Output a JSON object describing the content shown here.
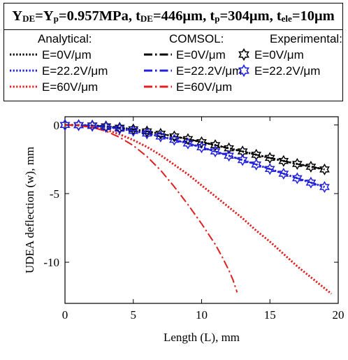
{
  "title": {
    "segments": [
      {
        "text": "Y",
        "sub": "DE"
      },
      {
        "text": "=Y",
        "sub": "p"
      },
      {
        "text": "=0.957MPa, t",
        "sub": "DE"
      },
      {
        "text": "=446μm, t",
        "sub": "p"
      },
      {
        "text": "=304μm, t",
        "sub": "ele"
      },
      {
        "text": "=10μm",
        "sub": ""
      }
    ]
  },
  "legend": {
    "groups": [
      {
        "header": "Analytical:",
        "entries": [
          {
            "label": "E=0V/μm",
            "color": "#000000",
            "style": "dotted"
          },
          {
            "label": "E=22.2V/μm",
            "color": "#1f1fe0",
            "style": "dotted"
          },
          {
            "label": "E=60V/μm",
            "color": "#e01f1f",
            "style": "dotted"
          }
        ]
      },
      {
        "header": "COMSOL:",
        "entries": [
          {
            "label": "E=0V/μm",
            "color": "#000000",
            "style": "dashdot"
          },
          {
            "label": "E=22.2V/μm",
            "color": "#1f1fe0",
            "style": "dashdot"
          },
          {
            "label": "E=60V/μm",
            "color": "#e01f1f",
            "style": "dashdot"
          }
        ]
      },
      {
        "header": "Experimental:",
        "entries": [
          {
            "label": "E=0V/μm",
            "color": "#000000",
            "style": "hexagram"
          },
          {
            "label": "E=22.2V/μm",
            "color": "#1f1fe0",
            "style": "hexagram"
          }
        ]
      }
    ]
  },
  "chart_data": {
    "type": "line",
    "xlabel": "Length (L), mm",
    "ylabel": "UDEA deflection (w), mm",
    "xlim": [
      0,
      20
    ],
    "ylim": [
      -13,
      0.6
    ],
    "xticks": [
      0,
      5,
      10,
      15,
      20
    ],
    "yticks": [
      0,
      -5,
      -10
    ],
    "grid": false,
    "legend_position": "above plot, boxed",
    "series": [
      {
        "name": "Analytical: E=0V/μm",
        "color": "#000000",
        "style": "dotted",
        "x": [
          0,
          1,
          2,
          3,
          4,
          5,
          6,
          7,
          8,
          9,
          10,
          11,
          12,
          13,
          14,
          15,
          16,
          17,
          18,
          19
        ],
        "y": [
          0,
          -0.01,
          -0.04,
          -0.1,
          -0.2,
          -0.32,
          -0.47,
          -0.64,
          -0.83,
          -1.03,
          -1.25,
          -1.47,
          -1.7,
          -1.93,
          -2.17,
          -2.4,
          -2.62,
          -2.84,
          -3.04,
          -3.24
        ]
      },
      {
        "name": "Analytical: E=22.2V/μm",
        "color": "#1f1fe0",
        "style": "dotted",
        "x": [
          0,
          1,
          2,
          3,
          4,
          5,
          6,
          7,
          8,
          9,
          10,
          11,
          12,
          13,
          14,
          15,
          16,
          17,
          18,
          19
        ],
        "y": [
          0,
          -0.02,
          -0.07,
          -0.15,
          -0.27,
          -0.43,
          -0.62,
          -0.84,
          -1.08,
          -1.35,
          -1.63,
          -1.93,
          -2.24,
          -2.56,
          -2.88,
          -3.21,
          -3.55,
          -3.88,
          -4.2,
          -4.52
        ]
      },
      {
        "name": "Analytical: E=60V/μm",
        "color": "#e01f1f",
        "style": "dotted",
        "x": [
          0,
          1,
          2,
          3,
          4,
          5,
          6,
          7,
          8,
          9,
          10,
          11,
          12,
          13,
          14,
          15,
          16,
          17,
          18,
          19.5
        ],
        "y": [
          0,
          -0.03,
          -0.14,
          -0.35,
          -0.68,
          -1.1,
          -1.6,
          -2.2,
          -2.9,
          -3.6,
          -4.4,
          -5.2,
          -6.0,
          -6.8,
          -7.7,
          -8.5,
          -9.4,
          -10.3,
          -11.1,
          -12.3
        ]
      },
      {
        "name": "COMSOL: E=0V/μm",
        "color": "#000000",
        "style": "dashdot",
        "x": [
          0,
          1,
          2,
          3,
          4,
          5,
          6,
          7,
          8,
          9,
          10,
          11,
          12,
          13,
          14,
          15,
          16,
          17,
          18,
          19
        ],
        "y": [
          0,
          -0.01,
          -0.04,
          -0.1,
          -0.2,
          -0.32,
          -0.47,
          -0.64,
          -0.83,
          -1.03,
          -1.25,
          -1.47,
          -1.7,
          -1.93,
          -2.17,
          -2.4,
          -2.62,
          -2.84,
          -3.04,
          -3.24
        ]
      },
      {
        "name": "COMSOL: E=22.2V/μm",
        "color": "#1f1fe0",
        "style": "dashdot",
        "x": [
          0,
          1,
          2,
          3,
          4,
          5,
          6,
          7,
          8,
          9,
          10,
          11,
          12,
          13,
          14,
          15,
          16,
          17,
          18,
          19
        ],
        "y": [
          0,
          -0.02,
          -0.07,
          -0.15,
          -0.27,
          -0.43,
          -0.62,
          -0.84,
          -1.08,
          -1.35,
          -1.63,
          -1.93,
          -2.24,
          -2.56,
          -2.88,
          -3.21,
          -3.55,
          -3.88,
          -4.2,
          -4.52
        ]
      },
      {
        "name": "COMSOL: E=60V/μm",
        "color": "#e01f1f",
        "style": "dashdot",
        "x": [
          0,
          1,
          2,
          3,
          4,
          5,
          6,
          7,
          8,
          9,
          10,
          11,
          11.5,
          12,
          12.3,
          12.6
        ],
        "y": [
          0,
          -0.04,
          -0.18,
          -0.45,
          -0.9,
          -1.5,
          -2.3,
          -3.3,
          -4.5,
          -5.8,
          -7.2,
          -8.7,
          -9.6,
          -10.6,
          -11.3,
          -12.2
        ]
      },
      {
        "name": "Experimental: E=0V/μm",
        "color": "#000000",
        "style": "hexagram",
        "x": [
          0,
          1,
          2,
          3,
          4,
          5,
          6,
          7,
          8,
          9,
          10,
          11,
          12,
          13,
          14,
          15,
          16,
          17,
          18,
          19
        ],
        "y": [
          0,
          -0.01,
          -0.04,
          -0.1,
          -0.2,
          -0.32,
          -0.47,
          -0.64,
          -0.83,
          -1.03,
          -1.25,
          -1.47,
          -1.7,
          -1.93,
          -2.17,
          -2.4,
          -2.62,
          -2.84,
          -3.04,
          -3.24
        ]
      },
      {
        "name": "Experimental: E=22.2V/μm",
        "color": "#1f1fe0",
        "style": "hexagram",
        "x": [
          0,
          1,
          2,
          3,
          4,
          5,
          6,
          7,
          8,
          9,
          10,
          11,
          12,
          13,
          14,
          15,
          16,
          17,
          18,
          19
        ],
        "y": [
          0,
          -0.02,
          -0.07,
          -0.15,
          -0.27,
          -0.43,
          -0.62,
          -0.84,
          -1.08,
          -1.35,
          -1.63,
          -1.93,
          -2.24,
          -2.56,
          -2.88,
          -3.21,
          -3.55,
          -3.88,
          -4.2,
          -4.52
        ]
      }
    ]
  }
}
